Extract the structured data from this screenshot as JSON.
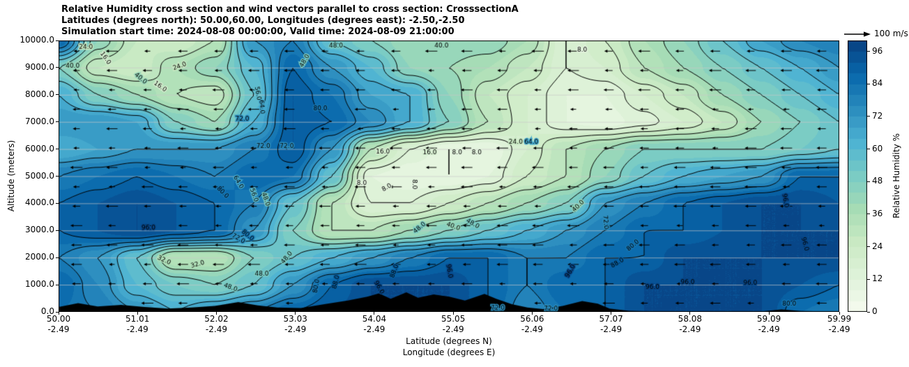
{
  "title": {
    "line1": "Relative Humidity cross section and wind vectors parallel to cross section: CrosssectionA",
    "line2": "Latitudes (degrees north): 50.00,60.00, Longitudes (degrees east): -2.50,-2.50",
    "line3": "Simulation start time: 2024-08-08 00:00:00, Valid time: 2024-08-09 21:00:00"
  },
  "axes": {
    "x_label_lat": "Latitude (degrees N)",
    "x_label_lon": "Longitude (degrees E)",
    "y_label": "Altitude (meters)",
    "x_ticks": [
      {
        "lat": "50.00",
        "lon": "-2.49",
        "value": 50.0
      },
      {
        "lat": "51.01",
        "lon": "-2.49",
        "value": 51.01
      },
      {
        "lat": "52.02",
        "lon": "-2.49",
        "value": 52.02
      },
      {
        "lat": "53.03",
        "lon": "-2.49",
        "value": 53.03
      },
      {
        "lat": "54.04",
        "lon": "-2.49",
        "value": 54.04
      },
      {
        "lat": "55.05",
        "lon": "-2.49",
        "value": 55.05
      },
      {
        "lat": "56.06",
        "lon": "-2.49",
        "value": 56.06
      },
      {
        "lat": "57.07",
        "lon": "-2.49",
        "value": 57.07
      },
      {
        "lat": "58.08",
        "lon": "-2.49",
        "value": 58.08
      },
      {
        "lat": "59.09",
        "lon": "-2.49",
        "value": 59.09
      },
      {
        "lat": "59.99",
        "lon": "-2.49",
        "value": 59.99
      }
    ],
    "y_ticks": [
      {
        "label": "10000.0",
        "value": 10000
      },
      {
        "label": "9000.0",
        "value": 9000
      },
      {
        "label": "8000.0",
        "value": 8000
      },
      {
        "label": "7000.0",
        "value": 7000
      },
      {
        "label": "6000.0",
        "value": 6000
      },
      {
        "label": "5000.0",
        "value": 5000
      },
      {
        "label": "4000.0",
        "value": 4000
      },
      {
        "label": "3000.0",
        "value": 3000
      },
      {
        "label": "2000.0",
        "value": 2000
      },
      {
        "label": "1000.0",
        "value": 1000
      },
      {
        "label": "0.0",
        "value": 0
      }
    ]
  },
  "colorbar": {
    "label": "Relative Humidity %",
    "ticks": [
      {
        "label": "96",
        "value": 96
      },
      {
        "label": "84",
        "value": 84
      },
      {
        "label": "72",
        "value": 72
      },
      {
        "label": "60",
        "value": 60
      },
      {
        "label": "48",
        "value": 48
      },
      {
        "label": "36",
        "value": 36
      },
      {
        "label": "24",
        "value": 24
      },
      {
        "label": "12",
        "value": 12
      },
      {
        "label": "0",
        "value": 0
      }
    ]
  },
  "quiver_key": {
    "label": "100 m/s",
    "reference_value": 100
  },
  "chart_data": {
    "type": "heatmap",
    "subtype": "filled-contour vertical cross section of relative humidity with wind quiver arrows and terrain silhouette",
    "title": "Relative Humidity cross section and wind vectors parallel to cross section: CrosssectionA",
    "x_range": [
      50.0,
      59.99
    ],
    "y_range": [
      0,
      10000
    ],
    "x_units": "degrees latitude N (longitude constant -2.49 E)",
    "y_units": "meters altitude",
    "value_units": "percent relative humidity",
    "grid_lats": [
      50.0,
      50.5,
      51.0,
      51.5,
      52.0,
      52.5,
      53.0,
      53.5,
      54.0,
      54.5,
      55.0,
      55.5,
      56.0,
      56.5,
      57.0,
      57.5,
      58.0,
      58.5,
      59.0,
      59.5,
      60.0
    ],
    "grid_alts_m": [
      10000,
      9000,
      8000,
      7000,
      6000,
      5000,
      4000,
      3000,
      2000,
      1000,
      0
    ],
    "rh_grid": [
      [
        88,
        44,
        28,
        24,
        32,
        72,
        80,
        56,
        48,
        40,
        44,
        44,
        36,
        16,
        24,
        36,
        44,
        56,
        68,
        76,
        80
      ],
      [
        48,
        28,
        24,
        36,
        44,
        60,
        88,
        72,
        60,
        44,
        40,
        36,
        28,
        16,
        20,
        32,
        40,
        48,
        56,
        64,
        72
      ],
      [
        64,
        48,
        40,
        32,
        28,
        56,
        92,
        84,
        68,
        64,
        44,
        28,
        20,
        12,
        12,
        20,
        28,
        40,
        48,
        56,
        64
      ],
      [
        72,
        72,
        68,
        48,
        40,
        64,
        92,
        88,
        76,
        64,
        48,
        32,
        20,
        12,
        10,
        14,
        20,
        28,
        40,
        48,
        56
      ],
      [
        64,
        68,
        72,
        72,
        72,
        80,
        92,
        72,
        32,
        16,
        8,
        8,
        20,
        32,
        40,
        48,
        48,
        48,
        48,
        52,
        56
      ],
      [
        80,
        84,
        88,
        84,
        80,
        88,
        84,
        56,
        12,
        8,
        8,
        12,
        24,
        32,
        44,
        56,
        64,
        68,
        72,
        88,
        88
      ],
      [
        88,
        92,
        96,
        92,
        88,
        80,
        56,
        32,
        16,
        16,
        24,
        32,
        40,
        48,
        72,
        80,
        88,
        92,
        96,
        96,
        92
      ],
      [
        88,
        92,
        96,
        92,
        88,
        72,
        48,
        32,
        32,
        40,
        48,
        56,
        64,
        72,
        80,
        88,
        88,
        92,
        96,
        96,
        96
      ],
      [
        80,
        72,
        56,
        32,
        32,
        48,
        56,
        64,
        72,
        80,
        88,
        88,
        80,
        80,
        88,
        88,
        96,
        96,
        96,
        96,
        96
      ],
      [
        88,
        76,
        60,
        52,
        48,
        56,
        72,
        88,
        96,
        96,
        96,
        88,
        80,
        88,
        88,
        96,
        96,
        96,
        96,
        92,
        88
      ],
      [
        84,
        80,
        72,
        64,
        72,
        80,
        88,
        92,
        96,
        96,
        96,
        88,
        76,
        84,
        88,
        96,
        96,
        96,
        96,
        84,
        80
      ]
    ],
    "contour_levels": [
      8,
      16,
      24,
      32,
      40,
      48,
      56,
      64,
      72,
      80,
      88,
      96
    ],
    "fill_level_step": 4,
    "colormap_hex": [
      "#f7fcf0",
      "#e0f3db",
      "#ccebc5",
      "#a8ddb5",
      "#7bccc4",
      "#4eb3d3",
      "#2b8cbe",
      "#0868ac",
      "#084081"
    ],
    "contour_labels_format": "[value, lat, alt_m, rotation_deg]",
    "contour_labels": [
      [
        24,
        50.35,
        9750,
        0
      ],
      [
        40,
        50.18,
        9050,
        0
      ],
      [
        16,
        50.6,
        9350,
        55
      ],
      [
        40,
        51.05,
        8600,
        40
      ],
      [
        16,
        51.3,
        8300,
        35
      ],
      [
        24,
        51.55,
        9050,
        -20
      ],
      [
        56,
        52.55,
        8050,
        80
      ],
      [
        64,
        52.6,
        7550,
        85
      ],
      [
        72,
        52.35,
        7100,
        0
      ],
      [
        48,
        53.15,
        9250,
        -60
      ],
      [
        80,
        53.35,
        7500,
        0
      ],
      [
        48,
        53.55,
        9800,
        0
      ],
      [
        40,
        54.9,
        9800,
        0
      ],
      [
        8,
        56.7,
        9650,
        0
      ],
      [
        72,
        52.62,
        6100,
        0
      ],
      [
        72,
        52.92,
        6100,
        0
      ],
      [
        16,
        54.15,
        5900,
        0
      ],
      [
        16,
        54.75,
        5880,
        0
      ],
      [
        8,
        55.1,
        5880,
        0
      ],
      [
        8,
        55.35,
        5880,
        0
      ],
      [
        24,
        55.85,
        6250,
        0
      ],
      [
        64,
        56.05,
        6250,
        0
      ],
      [
        8,
        53.88,
        4750,
        0
      ],
      [
        8,
        54.2,
        4580,
        -30
      ],
      [
        8,
        54.55,
        4700,
        90
      ],
      [
        96,
        51.15,
        3100,
        0
      ],
      [
        64,
        52.3,
        4780,
        60
      ],
      [
        80,
        52.1,
        4400,
        45
      ],
      [
        56,
        52.5,
        4300,
        70
      ],
      [
        48,
        52.65,
        4150,
        70
      ],
      [
        72,
        52.3,
        2700,
        30
      ],
      [
        80,
        52.42,
        2820,
        40
      ],
      [
        48,
        52.92,
        2000,
        -50
      ],
      [
        32,
        51.35,
        1900,
        25
      ],
      [
        32,
        51.78,
        1750,
        -15
      ],
      [
        48,
        52.6,
        1400,
        0
      ],
      [
        48,
        52.2,
        900,
        20
      ],
      [
        40,
        55.05,
        3150,
        20
      ],
      [
        48,
        55.3,
        3250,
        30
      ],
      [
        48,
        54.62,
        3100,
        -40
      ],
      [
        40,
        56.65,
        3900,
        -45
      ],
      [
        72,
        57.0,
        3300,
        85
      ],
      [
        88,
        57.15,
        1800,
        -30
      ],
      [
        80,
        57.35,
        2450,
        -40
      ],
      [
        96,
        58.05,
        1100,
        0
      ],
      [
        96,
        58.85,
        1050,
        0
      ],
      [
        96,
        59.3,
        4100,
        80
      ],
      [
        96,
        59.55,
        2500,
        75
      ],
      [
        80,
        59.35,
        300,
        0
      ],
      [
        72,
        55.62,
        150,
        0
      ],
      [
        88,
        54.3,
        1500,
        -70
      ],
      [
        96,
        54.1,
        900,
        60
      ],
      [
        80,
        53.3,
        950,
        -80
      ],
      [
        88,
        53.55,
        1100,
        -75
      ],
      [
        96,
        55.0,
        1500,
        80
      ],
      [
        72,
        56.3,
        100,
        0
      ],
      [
        96,
        57.6,
        900,
        0
      ],
      [
        96,
        56.55,
        1500,
        -60
      ]
    ],
    "terrain_profile": [
      [
        50.0,
        180
      ],
      [
        50.25,
        320
      ],
      [
        50.5,
        200
      ],
      [
        50.8,
        260
      ],
      [
        51.1,
        180
      ],
      [
        51.4,
        120
      ],
      [
        51.7,
        160
      ],
      [
        52.0,
        220
      ],
      [
        52.3,
        360
      ],
      [
        52.55,
        240
      ],
      [
        52.8,
        160
      ],
      [
        53.1,
        140
      ],
      [
        53.4,
        280
      ],
      [
        53.7,
        420
      ],
      [
        53.95,
        560
      ],
      [
        54.1,
        680
      ],
      [
        54.25,
        480
      ],
      [
        54.45,
        720
      ],
      [
        54.6,
        520
      ],
      [
        54.8,
        640
      ],
      [
        55.0,
        560
      ],
      [
        55.2,
        420
      ],
      [
        55.45,
        660
      ],
      [
        55.6,
        480
      ],
      [
        55.8,
        280
      ],
      [
        56.0,
        160
      ],
      [
        56.2,
        100
      ],
      [
        56.45,
        220
      ],
      [
        56.7,
        400
      ],
      [
        56.9,
        300
      ],
      [
        57.05,
        120
      ],
      [
        57.3,
        40
      ],
      [
        57.6,
        20
      ],
      [
        58.0,
        15
      ],
      [
        58.5,
        15
      ],
      [
        59.0,
        20
      ],
      [
        59.25,
        90
      ],
      [
        59.5,
        30
      ],
      [
        60.0,
        10
      ]
    ],
    "wind": {
      "reference_value": 100,
      "reference_units": "m/s",
      "direction": "arrows point toward lower latitude (leftward), roughly horizontal",
      "rows": 14,
      "cols": 22
    },
    "grid_lines": {
      "horizontal_every_m": 1000,
      "color": "#c8c8c8"
    }
  }
}
